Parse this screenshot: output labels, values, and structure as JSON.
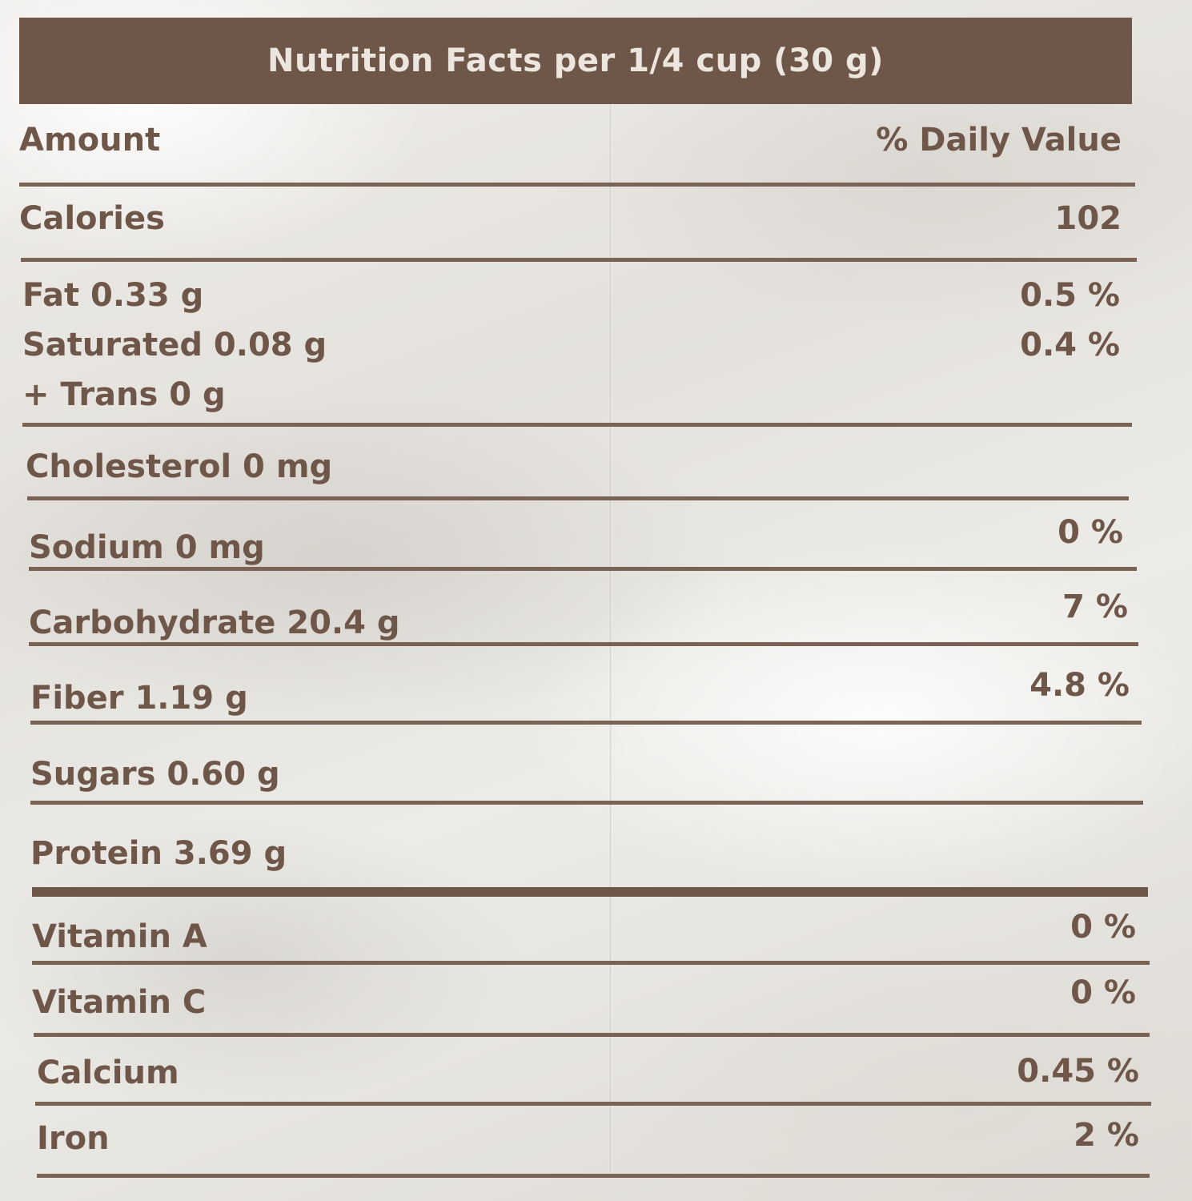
{
  "header": {
    "title": "Nutrition Facts per 1/4 cup (30 g)"
  },
  "columns": {
    "left": "Amount",
    "right": "% Daily Value"
  },
  "rows": [
    {
      "label": "Calories",
      "value": "102"
    },
    {
      "label": "Fat 0.33 g",
      "value": "0.5 %"
    },
    {
      "label": "Saturated 0.08 g",
      "value": "0.4 %"
    },
    {
      "label": "+ Trans 0 g",
      "value": ""
    },
    {
      "label": "Cholesterol 0 mg",
      "value": ""
    },
    {
      "label": "Sodium 0 mg",
      "value": "0 %"
    },
    {
      "label": "Carbohydrate 20.4 g",
      "value": "7 %"
    },
    {
      "label": "Fiber 1.19 g",
      "value": "4.8 %"
    },
    {
      "label": "Sugars 0.60 g",
      "value": ""
    },
    {
      "label": "Protein 3.69 g",
      "value": ""
    },
    {
      "label": "Vitamin A",
      "value": "0 %"
    },
    {
      "label": "Vitamin C",
      "value": "0 %"
    },
    {
      "label": "Calcium",
      "value": "0.45 %"
    },
    {
      "label": "Iron",
      "value": "2 %"
    }
  ],
  "colors": {
    "brand_brown": "#6e5649",
    "header_text": "#ece6df"
  }
}
